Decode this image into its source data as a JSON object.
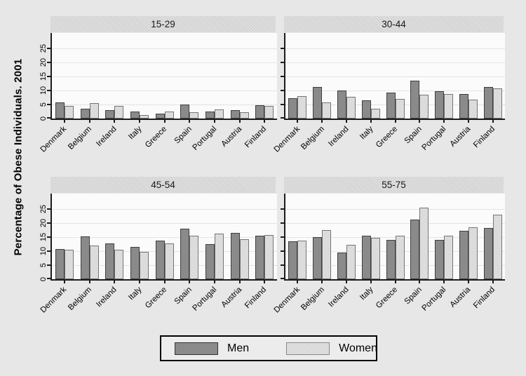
{
  "figure": {
    "ylabel": "Percentage of Obese Individuals. 2001",
    "background_color": "#e7e7e7",
    "plot_background_color": "#fbfbfb",
    "header_background_color": "#d8d8d8",
    "gridline_color": "#e4e4e4",
    "axis_color": "#1c1c1c"
  },
  "legend": {
    "position": "bottom-center",
    "items": [
      {
        "label": "Men",
        "swatch_color": "#8a8a8a",
        "swatch_border": "#333333"
      },
      {
        "label": "Women",
        "swatch_color": "#e1e1e1",
        "swatch_border": "#888888"
      }
    ]
  },
  "chart_data": {
    "type": "bar",
    "grouped": true,
    "faceted_by": "age_group",
    "title": "",
    "ylabel": "Percentage of Obese Individuals. 2001",
    "xlabel": "",
    "categories": [
      "Denmark",
      "Belgium",
      "Ireland",
      "Italy",
      "Greece",
      "Spain",
      "Portugal",
      "Austria",
      "Finland"
    ],
    "series_names": [
      "Men",
      "Women"
    ],
    "yticks": [
      0,
      5,
      10,
      15,
      20,
      25
    ],
    "ylim": [
      0,
      30.5
    ],
    "grid": true,
    "legend_position": "bottom",
    "x_tick_label_angle_deg": 45,
    "y_tick_label_angle_deg": 90,
    "panels": [
      {
        "title": "15-29",
        "series": [
          {
            "name": "Men",
            "values": [
              5.8,
              3.4,
              2.9,
              2.6,
              1.8,
              5.0,
              2.6,
              3.1,
              4.8
            ]
          },
          {
            "name": "Women",
            "values": [
              4.5,
              5.6,
              4.6,
              1.2,
              2.6,
              2.2,
              3.3,
              2.3,
              4.6
            ]
          }
        ]
      },
      {
        "title": "30-44",
        "series": [
          {
            "name": "Men",
            "values": [
              7.3,
              11.3,
              10.0,
              6.5,
              9.2,
              13.5,
              9.7,
              8.7,
              11.3
            ]
          },
          {
            "name": "Women",
            "values": [
              8.0,
              5.7,
              7.8,
              3.5,
              7.0,
              8.5,
              8.7,
              6.7,
              10.7
            ]
          }
        ]
      },
      {
        "title": "45-54",
        "series": [
          {
            "name": "Men",
            "values": [
              10.8,
              15.2,
              12.7,
              11.5,
              13.8,
              18.0,
              12.5,
              16.4,
              15.4
            ]
          },
          {
            "name": "Women",
            "values": [
              10.5,
              11.9,
              10.6,
              9.8,
              12.8,
              15.6,
              16.3,
              14.2,
              15.7
            ]
          }
        ]
      },
      {
        "title": "55-75",
        "series": [
          {
            "name": "Men",
            "values": [
              13.5,
              15.0,
              9.5,
              15.6,
              14.1,
              21.3,
              13.9,
              17.3,
              18.3
            ]
          },
          {
            "name": "Women",
            "values": [
              13.8,
              17.6,
              12.3,
              14.8,
              15.6,
              25.4,
              15.6,
              18.5,
              22.9
            ]
          }
        ]
      }
    ]
  }
}
